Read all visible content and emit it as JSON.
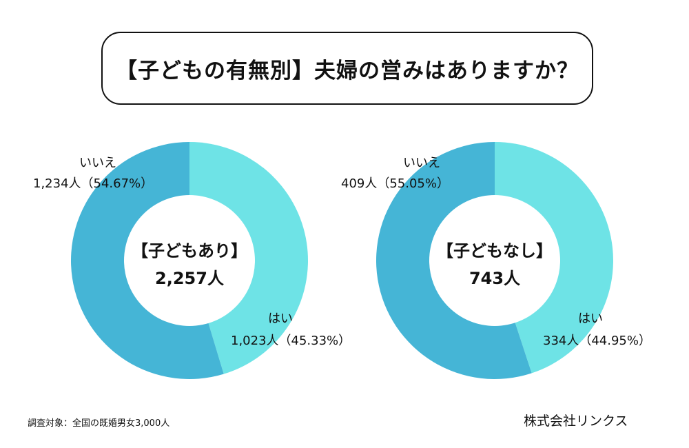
{
  "title": "【子どもの有無別】夫婦の営みはありますか？",
  "footer": {
    "note": "調査対象：全国の既婚男女3,000人",
    "company": "株式会社リンクス"
  },
  "colors": {
    "hai": "#6ee3e6",
    "iie": "#45b5d6",
    "hole": "#ffffff"
  },
  "chart_data": [
    {
      "type": "pie",
      "center_label": "【子どもあり】",
      "center_value": "2,257人",
      "slices": [
        {
          "label": "はい",
          "count_label": "1,023人（45.33%）",
          "value": 45.33
        },
        {
          "label": "いいえ",
          "count_label": "1,234人（54.67%）",
          "value": 54.67
        }
      ]
    },
    {
      "type": "pie",
      "center_label": "【子どもなし】",
      "center_value": "743人",
      "slices": [
        {
          "label": "はい",
          "count_label": "334人（44.95%）",
          "value": 44.95
        },
        {
          "label": "いいえ",
          "count_label": "409人（55.05%）",
          "value": 55.05
        }
      ]
    }
  ]
}
